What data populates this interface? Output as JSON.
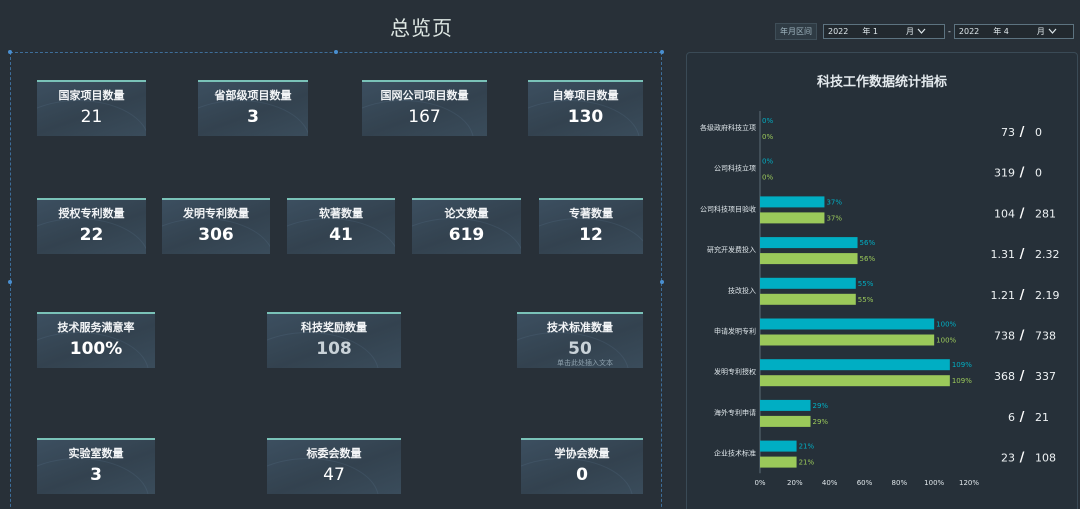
{
  "page_title": "总览页",
  "date_range": {
    "label": "年月区间",
    "start": {
      "year": "2022",
      "year_unit": "年",
      "month": "1",
      "month_unit": "月"
    },
    "separator": "-",
    "end": {
      "year": "2022",
      "year_unit": "年",
      "month": "4",
      "month_unit": "月"
    }
  },
  "stats": {
    "national_projects": {
      "label": "国家项目数量",
      "value": "21"
    },
    "provincial_projects": {
      "label": "省部级项目数量",
      "value": "3"
    },
    "sgcc_projects": {
      "label": "国网公司项目数量",
      "value": "167"
    },
    "self_funded_projects": {
      "label": "自筹项目数量",
      "value": "130"
    },
    "granted_patents": {
      "label": "授权专利数量",
      "value": "22"
    },
    "invention_patents": {
      "label": "发明专利数量",
      "value": "306"
    },
    "software_copyrights": {
      "label": "软著数量",
      "value": "41"
    },
    "papers": {
      "label": "论文数量",
      "value": "619"
    },
    "monographs": {
      "label": "专著数量",
      "value": "12"
    },
    "service_satisfaction": {
      "label": "技术服务满意率",
      "value": "100%"
    },
    "tech_awards": {
      "label": "科技奖励数量",
      "value": "108"
    },
    "tech_standards": {
      "label": "技术标准数量",
      "value": "50",
      "ghost_text": "单击此处插入文本"
    },
    "labs": {
      "label": "实验室数量",
      "value": "3"
    },
    "standards_committees": {
      "label": "标委会数量",
      "value": "47"
    },
    "societies": {
      "label": "学协会数量",
      "value": "0"
    }
  },
  "chart_data": {
    "type": "bar",
    "orientation": "horizontal",
    "title": "科技工作数据统计指标",
    "categories": [
      "各级政府科技立项",
      "公司科技立项",
      "公司科技项目验收",
      "研究开发费投入",
      "技改投入",
      "申请发明专利",
      "发明专利授权",
      "海外专利申请",
      "企业技术标准"
    ],
    "series": [
      {
        "color": "#00aec3",
        "values": [
          0,
          0,
          37,
          56,
          55,
          100,
          109,
          29,
          21
        ]
      },
      {
        "color": "#9bc95a",
        "values": [
          0,
          0,
          37,
          56,
          55,
          100,
          109,
          29,
          21
        ]
      }
    ],
    "value_labels": [
      "0%",
      "0%",
      "37%",
      "56%",
      "55%",
      "100%",
      "109%",
      "29%",
      "21%"
    ],
    "x_ticks": [
      "0%",
      "20%",
      "40%",
      "60%",
      "80%",
      "100%",
      "120%"
    ],
    "xlim": [
      0,
      120
    ],
    "ratios": [
      {
        "a": "73",
        "b": "0"
      },
      {
        "a": "319",
        "b": "0"
      },
      {
        "a": "104",
        "b": "281"
      },
      {
        "a": "1.31",
        "b": "2.32"
      },
      {
        "a": "1.21",
        "b": "2.19"
      },
      {
        "a": "738",
        "b": "738"
      },
      {
        "a": "368",
        "b": "337"
      },
      {
        "a": "6",
        "b": "21"
      },
      {
        "a": "23",
        "b": "108"
      }
    ],
    "ratio_separator": "/",
    "grid": false
  }
}
